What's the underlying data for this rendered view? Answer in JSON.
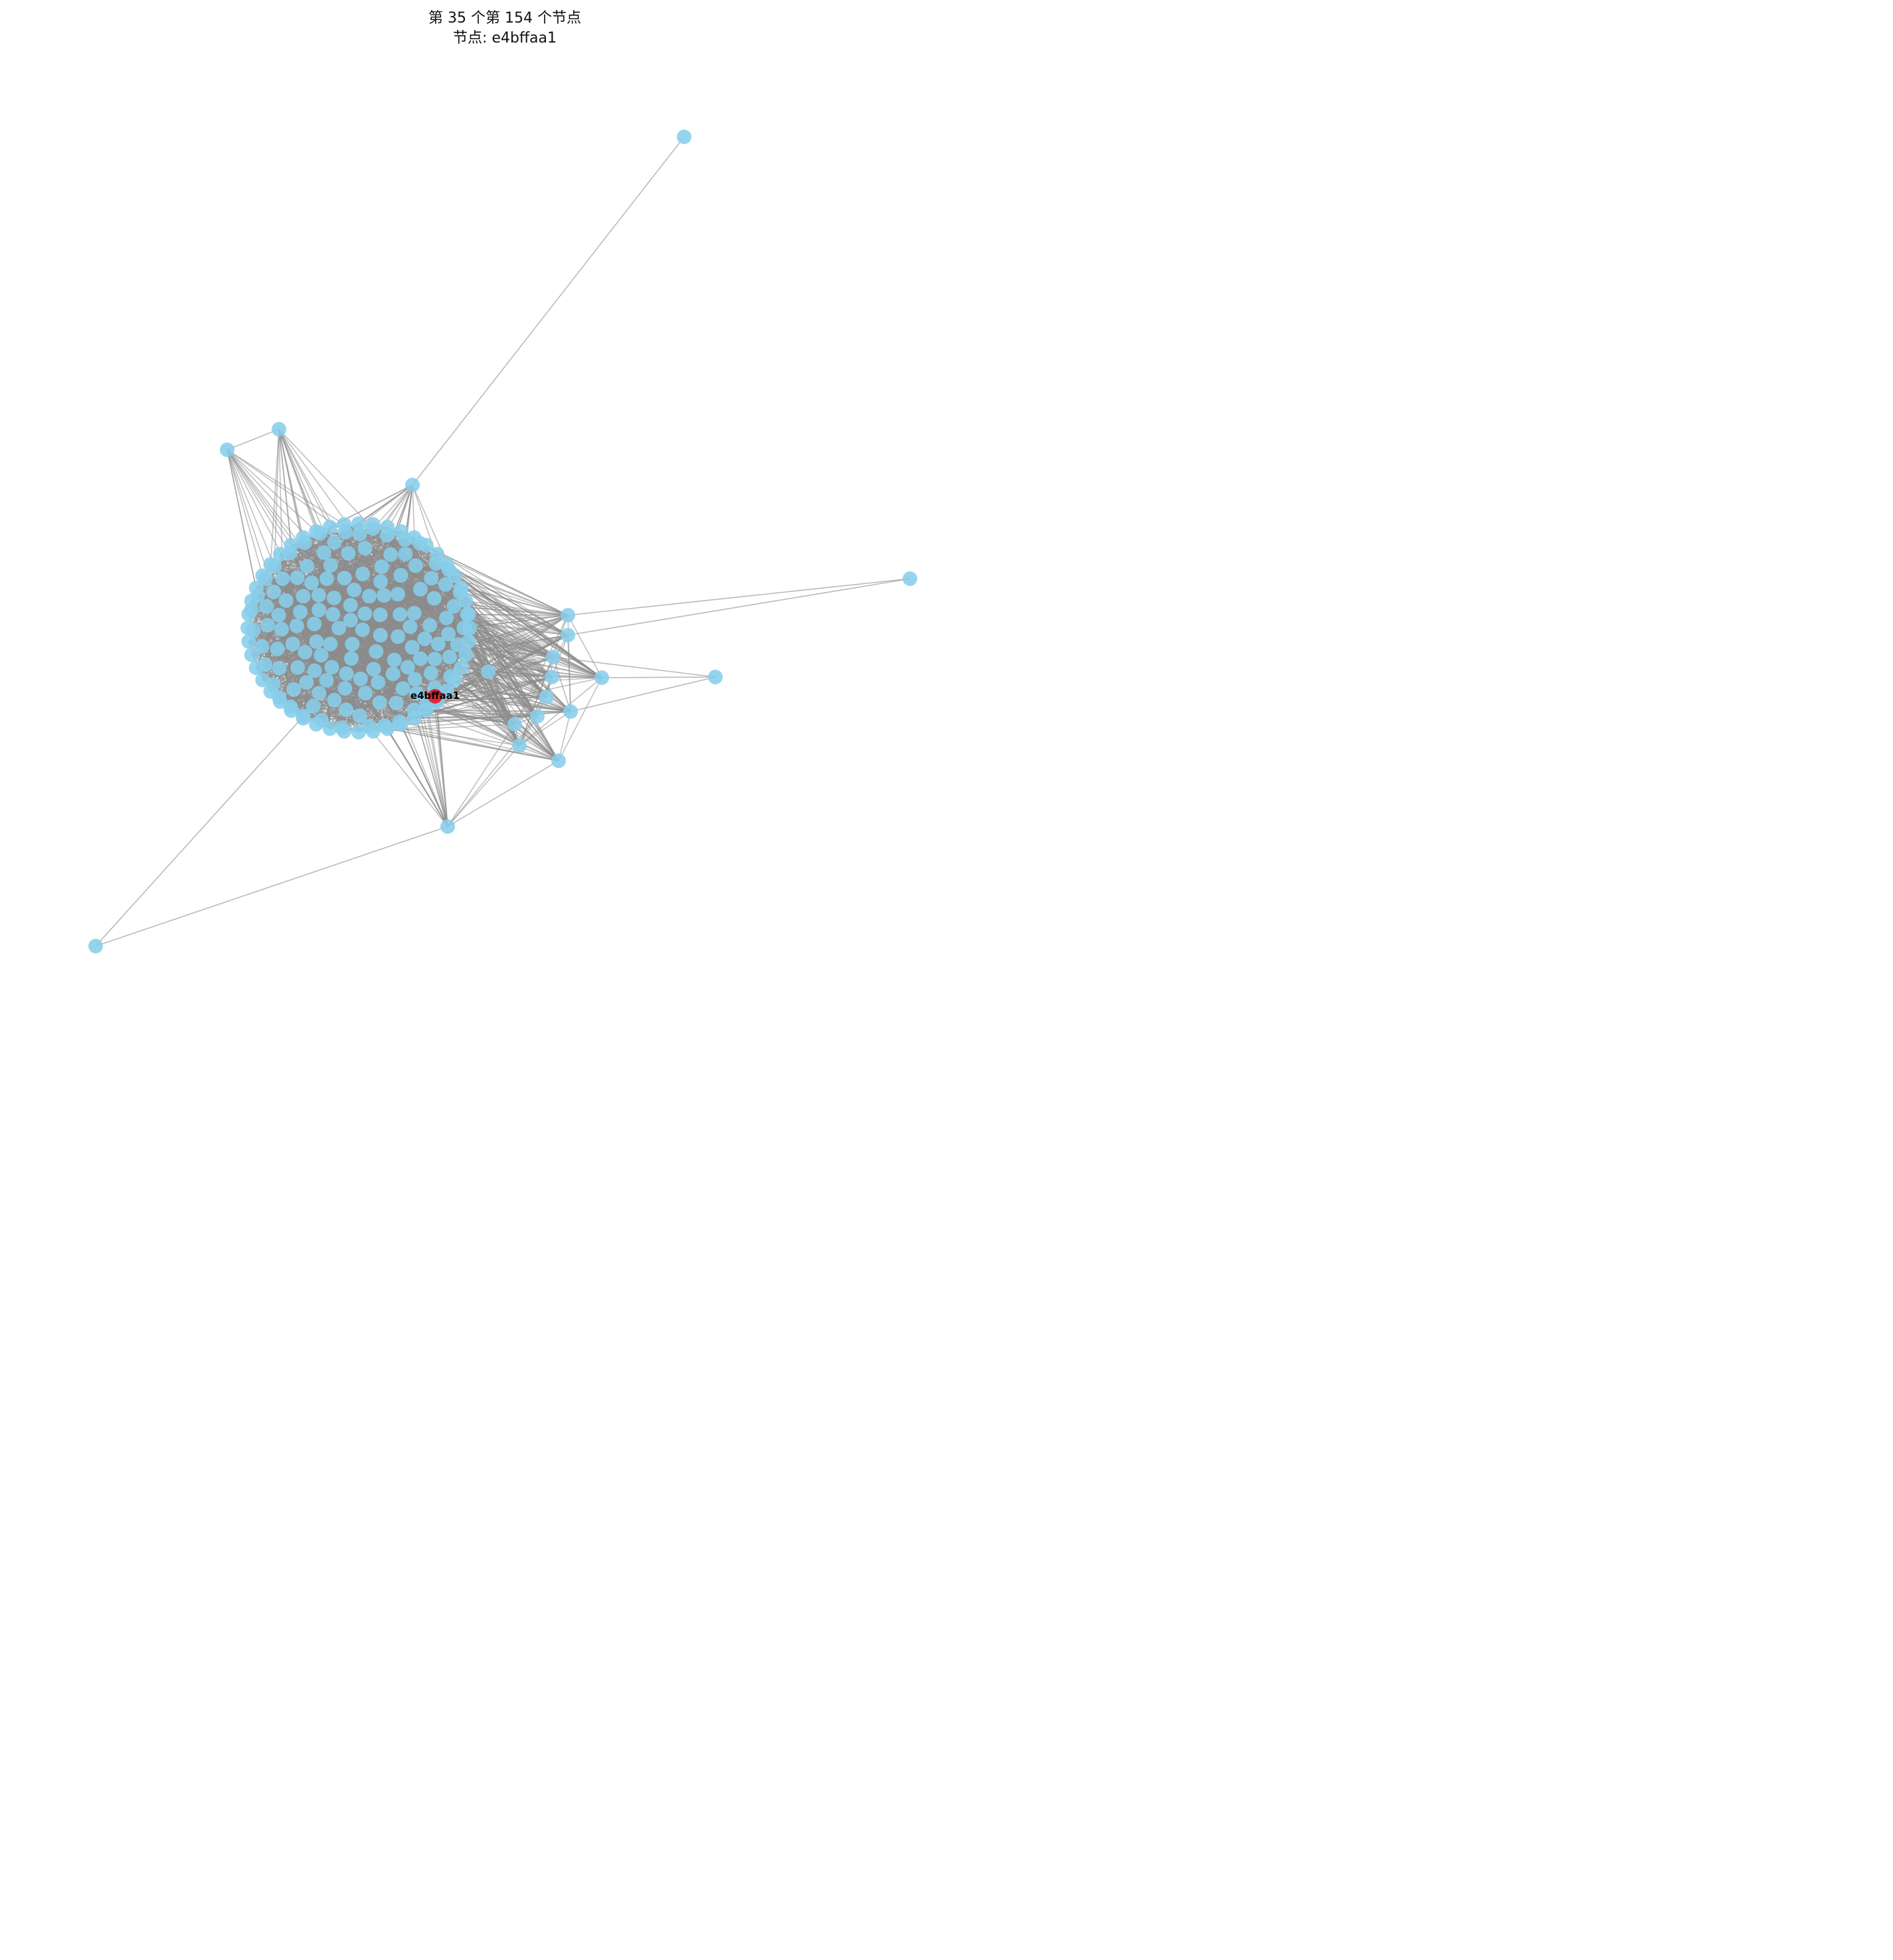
{
  "title_line1": "第 35 个第 154 个节点",
  "title_line2": "节点: e4bffaa1",
  "highlight_label": "e4bffaa1",
  "colors": {
    "node": "#87ceeb",
    "highlight": "#e8141c",
    "edge": "#8c8c8c"
  }
}
